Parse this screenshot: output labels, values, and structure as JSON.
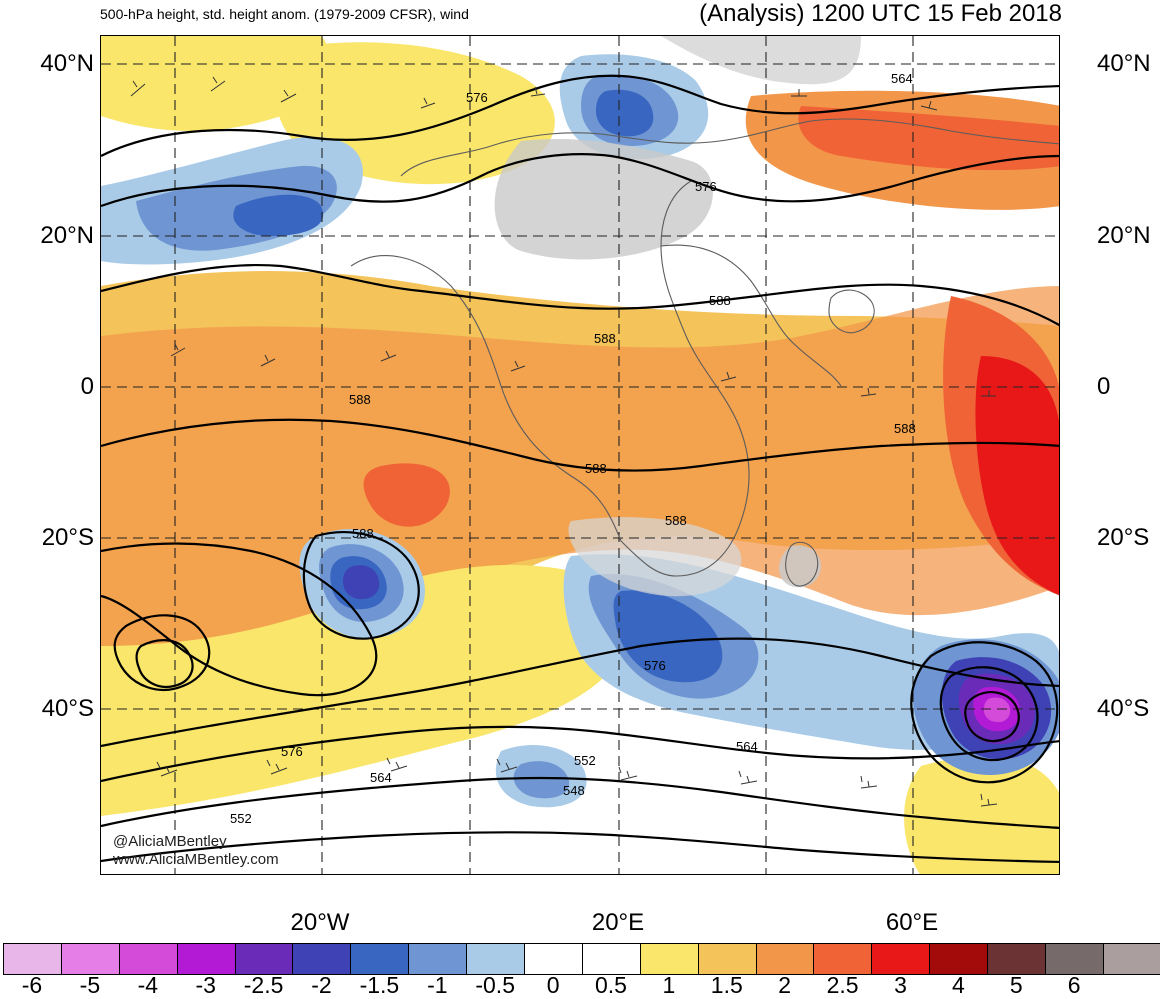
{
  "header": {
    "subtitle": "500-hPa height, std. height anom. (1979-2009 CFSR), wind",
    "analysis": "(Analysis) 1200 UTC 15 Feb 2018"
  },
  "axes": {
    "lat_labels": [
      "40°N",
      "20°N",
      "0",
      "20°S",
      "40°S"
    ],
    "lon_labels": [
      "20°W",
      "20°E",
      "60°E"
    ]
  },
  "contours": {
    "labels": [
      "564",
      "576",
      "576",
      "588",
      "588",
      "588",
      "588",
      "588",
      "588",
      "588",
      "576",
      "564",
      "552",
      "548",
      "576",
      "564",
      "552"
    ]
  },
  "watermark": {
    "line1": "@AliciaMBentley",
    "line2": "www.AliciaMBentley.com"
  },
  "colorbar": {
    "ticks": [
      "-6",
      "-5",
      "-4",
      "-3",
      "-2.5",
      "-2",
      "-1.5",
      "-1",
      "-0.5",
      "0",
      "0.5",
      "1",
      "1.5",
      "2",
      "2.5",
      "3",
      "4",
      "5",
      "6"
    ],
    "colors": [
      "#e8b6e8",
      "#e57ee6",
      "#d44ad9",
      "#b21ad5",
      "#6a2bb8",
      "#3e42b4",
      "#3866c0",
      "#6f96d2",
      "#a9cbe8",
      "#ffffff",
      "#ffffff",
      "#f9e66b",
      "#f4c35a",
      "#f2964a",
      "#ef6336",
      "#e81818",
      "#a30b0b",
      "#6b3333",
      "#766a6a",
      "#aa9e9e"
    ]
  }
}
